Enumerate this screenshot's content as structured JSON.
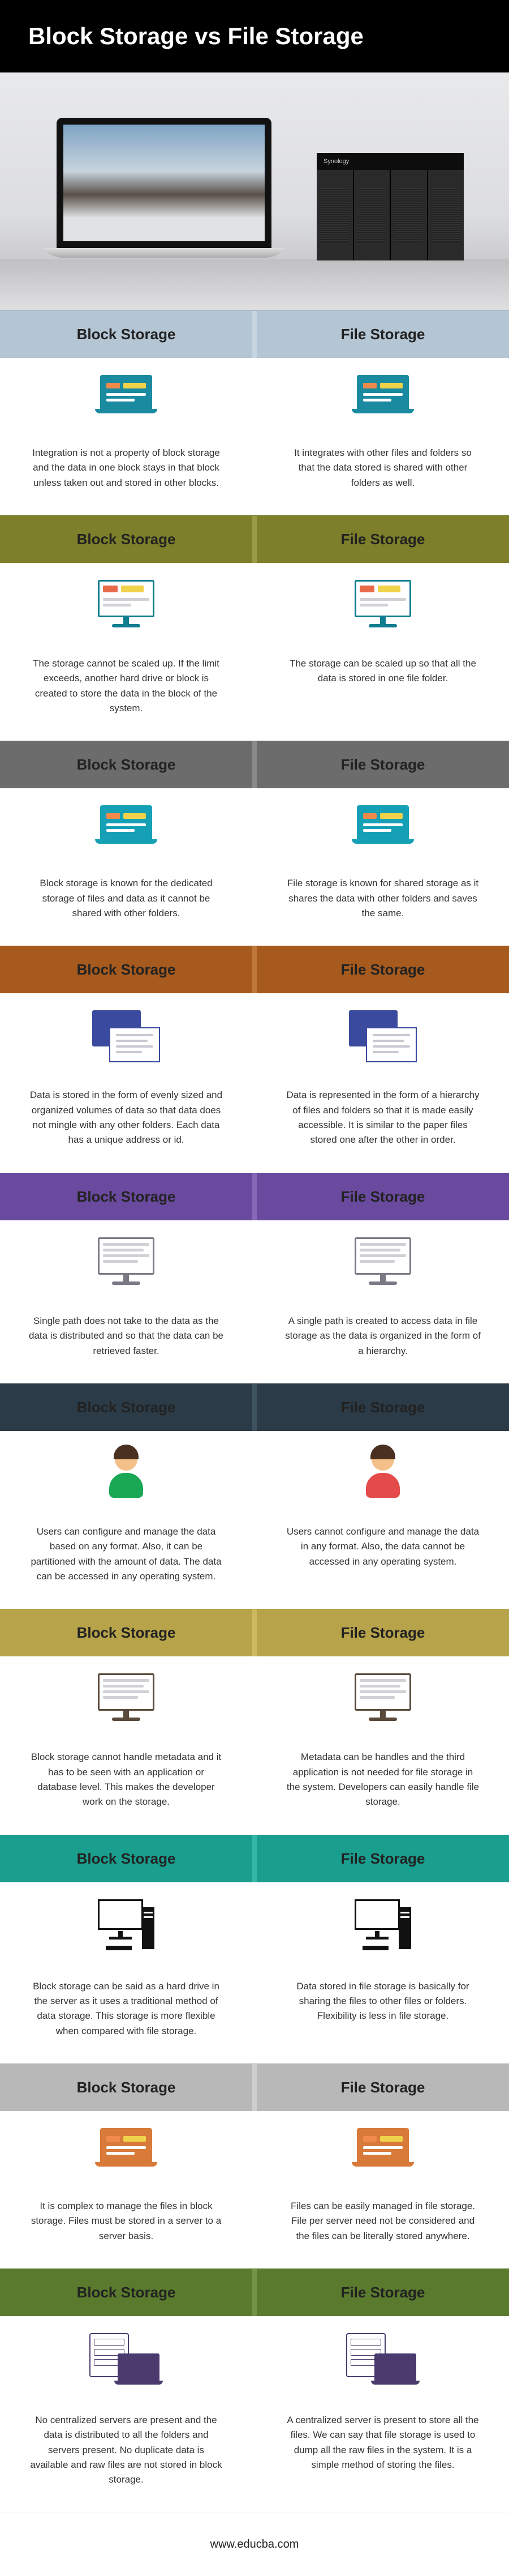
{
  "title": "Block Storage vs File Storage",
  "footer": "www.educba.com",
  "left_heading": "Block Storage",
  "right_heading": "File Storage",
  "nas_label": "Synology",
  "sections": [
    {
      "header_bg": "#b4c5d4",
      "header_sep": "#c7d5e0",
      "accent": "#1a8aa0",
      "icon": "laptop",
      "left": "Integration is not a property of block storage and the data in one block stays in that block unless taken out and stored in other blocks.",
      "right": "It integrates with other files and folders so that the data stored is shared with other folders as well."
    },
    {
      "header_bg": "#7d7f2a",
      "header_sep": "#9a9c47",
      "accent": "#0d7d8f",
      "icon": "monitor",
      "left": "The storage cannot be scaled up. If the limit exceeds, another hard drive or block is created to store the data in the block of the system.",
      "right": "The storage can be scaled up so that all the data is stored in one file folder."
    },
    {
      "header_bg": "#6c6c6c",
      "header_sep": "#8a8a8a",
      "accent": "#15a0b6",
      "icon": "laptop",
      "left": "Block storage is known for the dedicated storage of files and data as it cannot be shared with other folders.",
      "right": "File storage is known for shared storage as it shares the data with other folders and saves the same."
    },
    {
      "header_bg": "#a65a1e",
      "header_sep": "#bf7838",
      "accent": "#3a4a9e",
      "icon": "overlap",
      "left": "Data is stored in the form of evenly sized and organized volumes of data so that data does not mingle with any other folders.  Each data has a unique address or id.",
      "right": "Data is represented in the form of a hierarchy of files and folders so that it is made easily accessible. It is similar to the paper files stored one after the other in order."
    },
    {
      "header_bg": "#6a4a9e",
      "header_sep": "#8866b8",
      "accent": "#7a7a86",
      "icon": "monitor-gray",
      "left": "Single path does not take to the data as the data is distributed and so that the data can be retrieved faster.",
      "right": "A single path is created to access data in file storage as the data is organized in the form of a hierarchy."
    },
    {
      "header_bg": "#2b3b47",
      "header_sep": "#3f5260",
      "accent": "#1aa854",
      "accent2": "#e44a4a",
      "icon": "person",
      "left": "Users can configure and manage the data based on any format. Also, it can be partitioned with the amount of data. The data can be accessed in any operating system.",
      "right": "Users cannot configure and manage the data in any format. Also, the data cannot be accessed in any operating system."
    },
    {
      "header_bg": "#b7a44a",
      "header_sep": "#cdb95f",
      "accent": "#5a4a3a",
      "icon": "monitor-brown",
      "left": "Block storage cannot handle metadata and it has to be seen with an application or database level. This makes the developer work on the storage.",
      "right": "Metadata can be handles and the third application is not needed for file storage in the system. Developers can easily handle file storage."
    },
    {
      "header_bg": "#1a9e8e",
      "header_sep": "#34b8a6",
      "accent": "#111111",
      "icon": "desktop",
      "left": "Block storage can be said as a hard drive in the server as it uses a traditional method of data storage. This storage is more flexible when compared with file storage.",
      "right": "Data stored in file storage is basically for sharing the files to other files or folders. Flexibility is less in file storage."
    },
    {
      "header_bg": "#b8b8b8",
      "header_sep": "#cecece",
      "accent": "#d77a3a",
      "icon": "laptop-orange",
      "left": "It is complex to manage the files in block storage. Files must be stored in a server to a server basis.",
      "right": "Files can be easily managed in file storage. File per server need not be considered and the files can be literally stored anywhere."
    },
    {
      "header_bg": "#5a7a2e",
      "header_sep": "#749445",
      "accent": "#4a3a6e",
      "icon": "serverlap",
      "left": "No centralized servers are present and the data is distributed to all the folders and servers present. No duplicate data is available and raw files are not stored in block storage.",
      "right": "A centralized server is present to store all the files. We can say that file storage is used to dump all the raw files in the system. It is a simple method of storing the files."
    }
  ]
}
